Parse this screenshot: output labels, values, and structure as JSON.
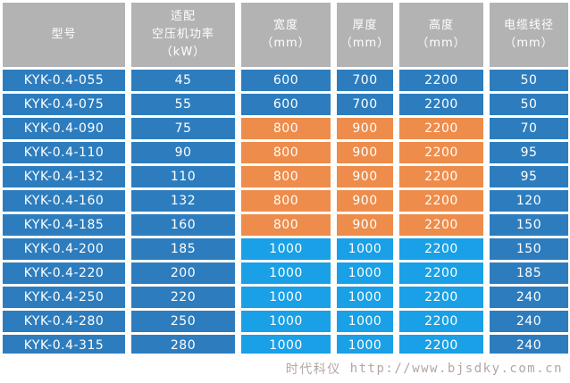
{
  "colors": {
    "header_bg": "#b3b3b3",
    "row_blue": "#2d7dbe",
    "row_orange": "#ee8c4b",
    "row_cyan": "#19a0e6",
    "cell_text": "#ffffff",
    "footer_text": "#b2a6a2",
    "gap": "#ffffff"
  },
  "header_cells": [
    {
      "lines": [
        "型号"
      ]
    },
    {
      "lines": [
        "适配",
        "空压机功率",
        "（kW）"
      ]
    },
    {
      "lines": [
        "宽度",
        "（mm）"
      ]
    },
    {
      "lines": [
        "厚度",
        "（mm）"
      ]
    },
    {
      "lines": [
        "高度",
        "（mm）"
      ]
    },
    {
      "lines": [
        "电缆线径",
        "（mm）"
      ]
    }
  ],
  "footer": {
    "brand": "时代科仪",
    "url": "http://www.bjsdky.com.cn"
  },
  "chart_data": {
    "type": "table",
    "title": "",
    "columns": [
      "型号",
      "适配空压机功率（kW）",
      "宽度（mm）",
      "厚度（mm）",
      "高度（mm）",
      "电缆线径（mm）"
    ],
    "rows": [
      [
        "KYK-0.4-055",
        45,
        600,
        700,
        2200,
        50
      ],
      [
        "KYK-0.4-075",
        55,
        600,
        700,
        2200,
        50
      ],
      [
        "KYK-0.4-090",
        75,
        800,
        900,
        2200,
        70
      ],
      [
        "KYK-0.4-110",
        90,
        800,
        900,
        2200,
        95
      ],
      [
        "KYK-0.4-132",
        110,
        800,
        900,
        2200,
        95
      ],
      [
        "KYK-0.4-160",
        132,
        800,
        900,
        2200,
        120
      ],
      [
        "KYK-0.4-185",
        160,
        800,
        900,
        2200,
        150
      ],
      [
        "KYK-0.4-200",
        185,
        1000,
        1000,
        2200,
        150
      ],
      [
        "KYK-0.4-220",
        200,
        1000,
        1000,
        2200,
        185
      ],
      [
        "KYK-0.4-250",
        220,
        1000,
        1000,
        2200,
        240
      ],
      [
        "KYK-0.4-280",
        250,
        1000,
        1000,
        2200,
        240
      ],
      [
        "KYK-0.4-315",
        280,
        1000,
        1000,
        2200,
        240
      ]
    ],
    "row_dim_band_colors": [
      "blue",
      "blue",
      "orange",
      "orange",
      "orange",
      "orange",
      "orange",
      "cyan",
      "cyan",
      "cyan",
      "cyan",
      "cyan"
    ],
    "layout_hints": {
      "dim_band_columns": [
        2,
        3,
        4
      ],
      "fixed_color_columns": [
        0,
        1,
        5
      ],
      "grid": "white gaps between cells"
    }
  }
}
